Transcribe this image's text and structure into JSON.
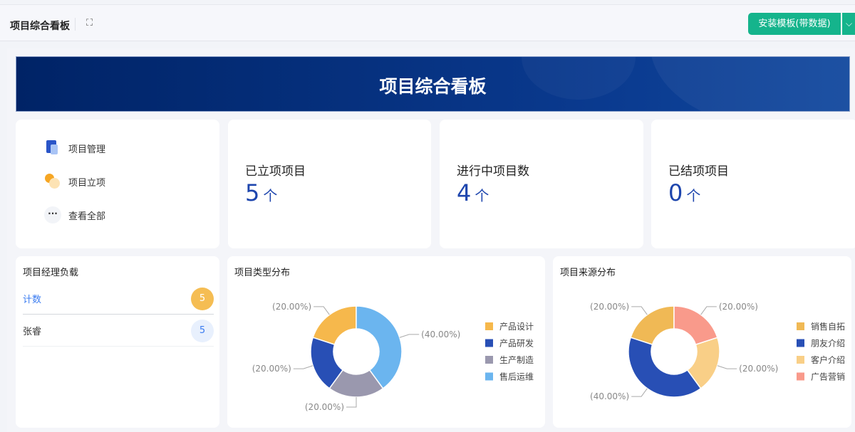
{
  "header": {
    "title": "项目综合看板",
    "install_button": "安装模板(带数据)"
  },
  "banner": {
    "title": "项目综合看板"
  },
  "nav": [
    {
      "label": "项目管理",
      "icon": "document-flag-icon"
    },
    {
      "label": "项目立项",
      "icon": "circles-icon"
    },
    {
      "label": "查看全部",
      "icon": "more-icon"
    }
  ],
  "stats": [
    {
      "label": "已立项项目",
      "value": "5",
      "unit": "个"
    },
    {
      "label": "进行中项目数",
      "value": "4",
      "unit": "个"
    },
    {
      "label": "已结项项目",
      "value": "0",
      "unit": "个"
    }
  ],
  "manager_load": {
    "title": "项目经理负载",
    "header": {
      "label": "计数",
      "count": "5"
    },
    "rows": [
      {
        "name": "张睿",
        "count": "5"
      }
    ]
  },
  "chart_data": [
    {
      "type": "pie",
      "donut": true,
      "title": "项目类型分布",
      "categories": [
        "产品设计",
        "产品研发",
        "生产制造",
        "售后运维"
      ],
      "values": [
        20,
        20,
        20,
        40
      ],
      "labels": [
        "(20.00%)",
        "(20.00%)",
        "(20.00%)",
        "(40.00%)"
      ],
      "colors": [
        "#f6b84c",
        "#284fb5",
        "#9a98ae",
        "#6bb5ef"
      ],
      "legend": "right"
    },
    {
      "type": "pie",
      "donut": true,
      "title": "项目来源分布",
      "categories": [
        "销售自拓",
        "朋友介绍",
        "客户介绍",
        "广告营销"
      ],
      "values": [
        20,
        40,
        20,
        20
      ],
      "labels": [
        "(20.00%)",
        "(40.00%)",
        "(20.00%)",
        "(20.00%)"
      ],
      "colors": [
        "#f0b955",
        "#284fb5",
        "#f9cf87",
        "#f99a8b"
      ],
      "legend": "right"
    }
  ]
}
